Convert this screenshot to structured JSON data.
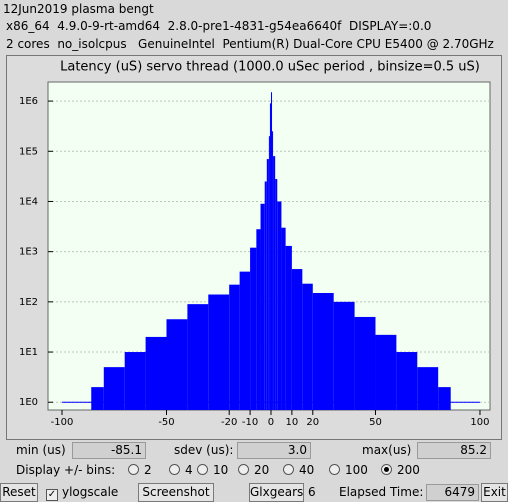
{
  "header": {
    "lines": [
      "12Jun2019 plasma bengt",
      "x86_64  4.9.0-9-rt-amd64  2.8.0-pre1-4831-g54ea6640f  DISPLAY=:0.0",
      "2 cores  no_isolcpus   GenuineIntel  Pentium(R) Dual-Core CPU E5400 @ 2.70GHz"
    ]
  },
  "chart_data": {
    "type": "histogram",
    "title": "Latency (uS) servo thread (1000.0 uSec period , binsize=0.5 uS)",
    "bins": [
      -86,
      -80,
      -70,
      -60,
      -50,
      -40,
      -30,
      -20,
      -15,
      -10,
      -7,
      -5,
      -3,
      -2,
      -1,
      -0.5,
      0,
      0.5,
      1,
      2,
      3,
      5,
      7,
      10,
      15,
      20,
      30,
      40,
      50,
      60,
      70,
      80,
      86
    ],
    "counts": [
      2,
      5,
      10,
      20,
      45,
      90,
      140,
      220,
      400,
      1200,
      2800,
      9000,
      25000,
      70000,
      200000,
      900000,
      1500000,
      250000,
      80000,
      28000,
      10000,
      3000,
      1300,
      450,
      230,
      150,
      100,
      50,
      22,
      10,
      5,
      2
    ],
    "color": "#0000ff",
    "xlim": [
      -106.7,
      104.8
    ],
    "xticks": [
      -100,
      -50,
      -20,
      -10,
      0,
      10,
      20,
      50,
      100
    ],
    "ylim": [
      0.7,
      2400000
    ],
    "yticks": [
      {
        "value": 1,
        "label": "1E0"
      },
      {
        "value": 10,
        "label": "1E1"
      },
      {
        "value": 100,
        "label": "1E2"
      },
      {
        "value": 1000,
        "label": "1E3"
      },
      {
        "value": 10000,
        "label": "1E4"
      },
      {
        "value": 100000,
        "label": "1E5"
      },
      {
        "value": 1000000,
        "label": "1E6"
      }
    ],
    "log_y": true,
    "grid": true
  },
  "stats": {
    "min_label": "min (us)",
    "min": "-85.1",
    "sdev_label": "sdev (us):",
    "sdev": "3.0",
    "max_label": "max(us)",
    "max": "85.2"
  },
  "bins_control": {
    "label": "Display +/- bins:",
    "options": [
      "2",
      "4",
      "10",
      "20",
      "40",
      "100",
      "200"
    ],
    "selected": 6
  },
  "toolbar": {
    "reset": "Reset",
    "ylogscale": "ylogscale",
    "ylogscale_checked": true,
    "screenshot": "Screenshot",
    "glxgears": "Glxgears",
    "glxgears_count": "6",
    "elapsed_label": "Elapsed Time:",
    "elapsed": "6479",
    "exit": "Exit"
  }
}
